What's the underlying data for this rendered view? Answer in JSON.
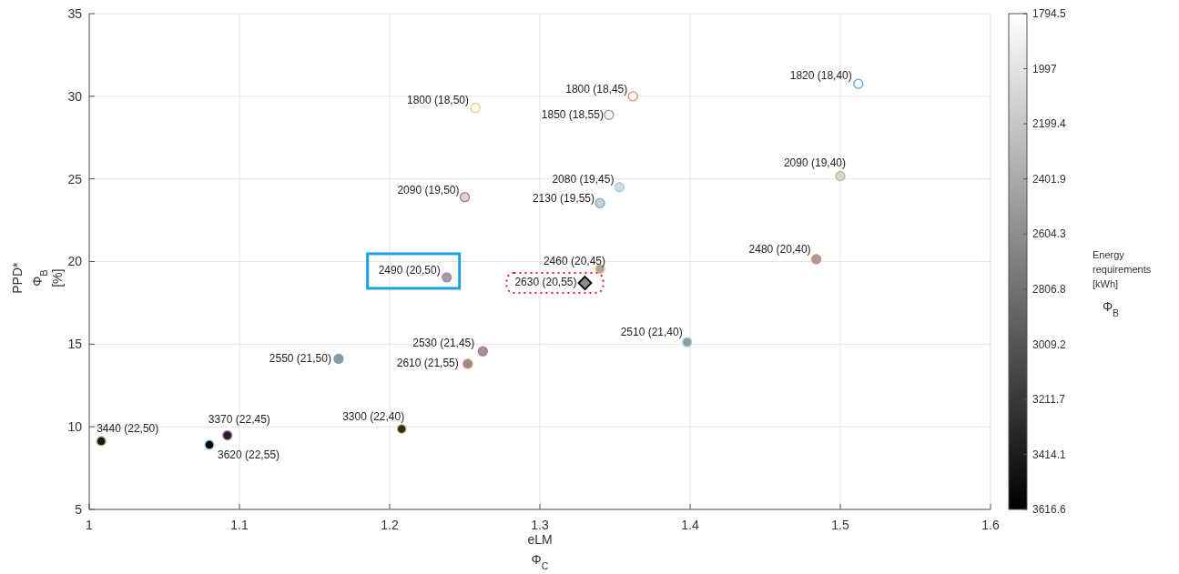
{
  "chart_data": {
    "type": "scatter",
    "xlabel": "eLM\nΦ$_{C}$",
    "ylabel": "PPD*\nΦ$_{B}$\n[%]",
    "clabel": "Energy requirements\n[kWh]\nΦ$_{B}$",
    "xlim": [
      1,
      1.6
    ],
    "xticks": [
      1,
      1.1,
      1.2,
      1.3,
      1.4,
      1.5,
      1.6
    ],
    "ylim": [
      5,
      35
    ],
    "yticks": [
      5,
      10,
      15,
      20,
      25,
      30,
      35
    ],
    "clim": [
      3616.6,
      1794.5
    ],
    "cticks": [
      1794.5,
      1997,
      2199.4,
      2401.9,
      2604.3,
      2806.8,
      3009.2,
      3211.7,
      3414.1,
      3616.6
    ],
    "grid": true,
    "series": [
      {
        "marker": "circle",
        "x": [
          1.512,
          1.362,
          1.346,
          1.257,
          1.5,
          1.353,
          1.34,
          1.25,
          1.484,
          1.34,
          1.238,
          1.398,
          1.262,
          1.166,
          1.252,
          1.208,
          1.008,
          1.092,
          1.08
        ],
        "values": [
          30.75,
          30.0,
          28.87,
          29.3,
          25.17,
          24.5,
          23.53,
          23.9,
          20.14,
          19.55,
          19.04,
          15.12,
          14.57,
          14.11,
          13.81,
          9.87,
          9.13,
          9.48,
          8.91
        ],
        "cvalues": [
          1820,
          1800,
          1850,
          1800,
          2090,
          2080,
          2130,
          2090,
          2480,
          2460,
          2490,
          2510,
          2530,
          2550,
          2610,
          3300,
          3440,
          3370,
          3620
        ],
        "colors": [
          "#62a8dc",
          "#e8876a",
          "#b07fbb",
          "#f2cc70",
          "#a3c97a",
          "#8fd6f2",
          "#62a8dc",
          "#c76b7c",
          "#e8876a",
          "#f2cc70",
          "#b07fbb",
          "#8fd6f2",
          "#c76b7c",
          "#62a8dc",
          "#e8876a",
          "#f2cc70",
          "#a3c97a",
          "#b07fbb",
          "#8fd6f2"
        ],
        "value_labels": [
          "1820 (18,40)",
          "1800 (18,45)",
          "1850 (18,55)",
          "1800 (18,50)",
          "2090 (19,40)",
          "2080 (19,45)",
          "2130 (19,55)",
          "2090 (19,50)",
          "2480 (20,40)",
          "2460 (20,45)",
          "2490 (20,50)",
          "2510 (21,40)",
          "2530 (21,45)",
          "2550 (21,50)",
          "2610 (21,55)",
          "3300 (22,40)",
          "3440 (22,50)",
          "3370 (22,45)",
          "3620 (22,55)"
        ]
      },
      {
        "marker": "diamond",
        "color": "#000000",
        "x": [
          1.33
        ],
        "values": [
          18.7
        ],
        "cvalues": [
          2630
        ],
        "value_labels": [
          "2630 (20,55)"
        ]
      }
    ]
  }
}
